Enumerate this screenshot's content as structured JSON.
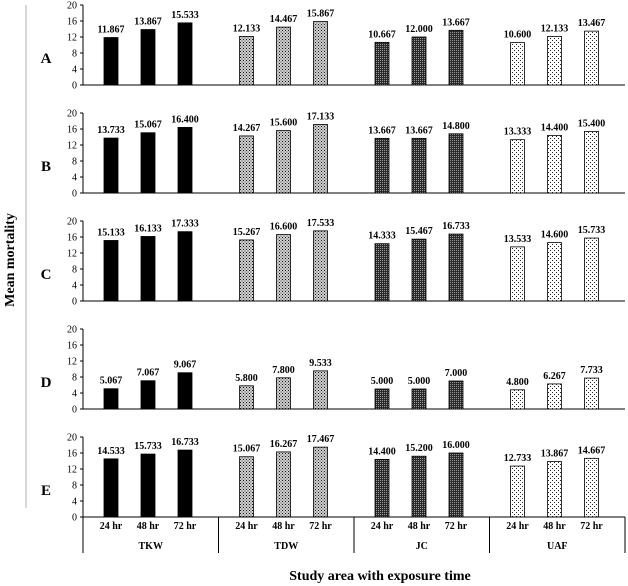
{
  "chart_data": {
    "type": "bar",
    "ylabel": "Mean mortality",
    "xlabel": "Study area with exposure time",
    "ylim": [
      0,
      20
    ],
    "yticks": [
      0,
      4,
      8,
      12,
      16,
      20
    ],
    "categories": [
      "24 hr",
      "48 hr",
      "72 hr"
    ],
    "groups": [
      "TKW",
      "TDW",
      "JC",
      "UAF"
    ],
    "panels": [
      {
        "label": "A",
        "series": [
          {
            "group": "TKW",
            "values": [
              11.867,
              13.867,
              15.533
            ],
            "labels": [
              "11.867",
              "13.867",
              "15.533"
            ]
          },
          {
            "group": "TDW",
            "values": [
              12.133,
              14.467,
              15.867
            ],
            "labels": [
              "12.133",
              "14.467",
              "15.867"
            ]
          },
          {
            "group": "JC",
            "values": [
              10.667,
              12.0,
              13.667
            ],
            "labels": [
              "10.667",
              "12.000",
              "13.667"
            ]
          },
          {
            "group": "UAF",
            "values": [
              10.6,
              12.133,
              13.467
            ],
            "labels": [
              "10.600",
              "12.133",
              "13.467"
            ]
          }
        ]
      },
      {
        "label": "B",
        "series": [
          {
            "group": "TKW",
            "values": [
              13.733,
              15.067,
              16.4
            ],
            "labels": [
              "13.733",
              "15.067",
              "16.400"
            ]
          },
          {
            "group": "TDW",
            "values": [
              14.267,
              15.6,
              17.133
            ],
            "labels": [
              "14.267",
              "15.600",
              "17.133"
            ]
          },
          {
            "group": "JC",
            "values": [
              13.667,
              13.667,
              14.8
            ],
            "labels": [
              "13.667",
              "13.667",
              "14.800"
            ]
          },
          {
            "group": "UAF",
            "values": [
              13.333,
              14.4,
              15.4
            ],
            "labels": [
              "13.333",
              "14.400",
              "15.400"
            ]
          }
        ]
      },
      {
        "label": "C",
        "series": [
          {
            "group": "TKW",
            "values": [
              15.133,
              16.133,
              17.333
            ],
            "labels": [
              "15.133",
              "16.133",
              "17.333"
            ]
          },
          {
            "group": "TDW",
            "values": [
              15.267,
              16.6,
              17.533
            ],
            "labels": [
              "15.267",
              "16.600",
              "17.533"
            ]
          },
          {
            "group": "JC",
            "values": [
              14.333,
              15.467,
              16.733
            ],
            "labels": [
              "14.333",
              "15.467",
              "16.733"
            ]
          },
          {
            "group": "UAF",
            "values": [
              13.533,
              14.6,
              15.733
            ],
            "labels": [
              "13.533",
              "14.600",
              "15.733"
            ]
          }
        ]
      },
      {
        "label": "D",
        "series": [
          {
            "group": "TKW",
            "values": [
              5.067,
              7.067,
              9.067
            ],
            "labels": [
              "5.067",
              "7.067",
              "9.067"
            ]
          },
          {
            "group": "TDW",
            "values": [
              5.8,
              7.8,
              9.533
            ],
            "labels": [
              "5.800",
              "7.800",
              "9.533"
            ]
          },
          {
            "group": "JC",
            "values": [
              5.0,
              5.0,
              7.0
            ],
            "labels": [
              "5.000",
              "5.000",
              "7.000"
            ]
          },
          {
            "group": "UAF",
            "values": [
              4.8,
              6.267,
              7.733
            ],
            "labels": [
              "4.800",
              "6.267",
              "7.733"
            ]
          }
        ]
      },
      {
        "label": "E",
        "series": [
          {
            "group": "TKW",
            "values": [
              14.533,
              15.733,
              16.733
            ],
            "labels": [
              "14.533",
              "15.733",
              "16.733"
            ]
          },
          {
            "group": "TDW",
            "values": [
              15.067,
              16.267,
              17.467
            ],
            "labels": [
              "15.067",
              "16.267",
              "17.467"
            ]
          },
          {
            "group": "JC",
            "values": [
              14.4,
              15.2,
              16.0
            ],
            "labels": [
              "14.400",
              "15.200",
              "16.000"
            ]
          },
          {
            "group": "UAF",
            "values": [
              12.733,
              13.867,
              14.667
            ],
            "labels": [
              "12.733",
              "13.867",
              "14.667"
            ]
          }
        ]
      }
    ],
    "group_fills": {
      "TKW": "solid-black",
      "TDW": "dotted-gray",
      "JC": "dense-dark-dots",
      "UAF": "sparse-dots"
    }
  }
}
